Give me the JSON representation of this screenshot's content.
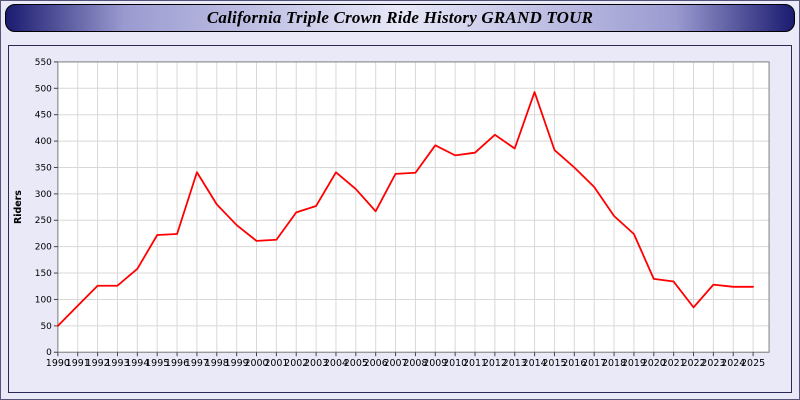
{
  "header": {
    "title": "California Triple Crown Ride History GRAND TOUR"
  },
  "colors": {
    "titlebar_edge": "#1b1b70",
    "titlebar_mid": "#9a9ad0",
    "titlebar_center": "#e8e8f8",
    "page_background": "#e9e9f8",
    "plot_background": "#ffffff",
    "grid": "#d8d8d8",
    "axis_border": "#808080"
  },
  "chart_data": {
    "type": "line",
    "title": "California Triple Crown Ride History GRAND TOUR",
    "xlabel": "",
    "ylabel": "Riders",
    "ylim": [
      0,
      550
    ],
    "ytick_step": 50,
    "grid": true,
    "legend": "none",
    "line_color": "#ff0000",
    "x_labels": [
      "1990",
      "1991",
      "1992",
      "1993",
      "1994",
      "1995",
      "1996",
      "1997",
      "1998",
      "1999",
      "2000",
      "2001",
      "2002",
      "2003",
      "2004",
      "2005",
      "2006",
      "2007",
      "2008",
      "2009",
      "2010",
      "2011",
      "2012",
      "2013",
      "2014",
      "2015",
      "2016",
      "2017",
      "2018",
      "2019",
      "2020",
      "2021",
      "2022",
      "2023",
      "2024",
      "2025"
    ],
    "series": [
      {
        "name": "Riders",
        "values": [
          50,
          88,
          126,
          126,
          158,
          222,
          224,
          341,
          280,
          241,
          211,
          213,
          265,
          277,
          341,
          309,
          267,
          338,
          340,
          392,
          373,
          378,
          412,
          386,
          493,
          383,
          350,
          313,
          258,
          224,
          139,
          134,
          85,
          128,
          124,
          124
        ]
      }
    ]
  }
}
